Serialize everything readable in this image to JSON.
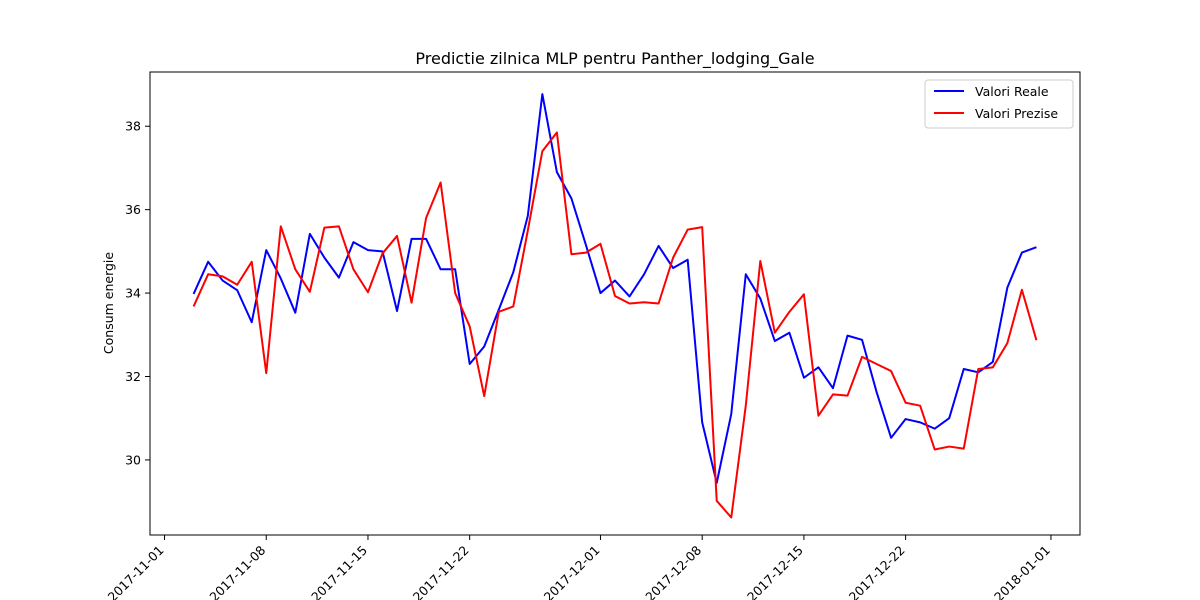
{
  "chart_data": {
    "type": "line",
    "title": "Predictie zilnica MLP pentru Panther_lodging_Gale",
    "xlabel": "",
    "ylabel": "Consum energie",
    "x_start": "2017-11-03",
    "x_ticks": [
      "2017-11-01",
      "2017-11-08",
      "2017-11-15",
      "2017-11-22",
      "2017-12-01",
      "2017-12-08",
      "2017-12-15",
      "2017-12-22",
      "2018-01-01"
    ],
    "xlim": [
      "2017-10-31",
      "2018-01-03"
    ],
    "ylim": [
      28.2,
      39.3
    ],
    "y_ticks": [
      30,
      32,
      34,
      36,
      38
    ],
    "grid": false,
    "legend_position": "top-right",
    "series": [
      {
        "name": "Valori Reale",
        "color": "#0000ff",
        "values": [
          33.98,
          34.75,
          34.3,
          34.07,
          33.3,
          35.03,
          34.35,
          33.53,
          35.42,
          34.85,
          34.37,
          35.22,
          35.03,
          35.0,
          33.57,
          35.3,
          35.3,
          34.57,
          34.57,
          32.3,
          32.72,
          33.6,
          34.5,
          35.85,
          38.77,
          36.9,
          36.27,
          35.15,
          34.0,
          34.3,
          33.92,
          34.45,
          35.13,
          34.6,
          34.8,
          30.9,
          29.45,
          31.1,
          34.45,
          33.87,
          32.85,
          33.05,
          31.97,
          32.22,
          31.72,
          32.98,
          32.88,
          31.63,
          30.53,
          30.98,
          30.9,
          30.75,
          31.0,
          32.18,
          32.1,
          32.35,
          34.13,
          34.97,
          35.1
        ]
      },
      {
        "name": "Valori Prezise",
        "color": "#ff0000",
        "values": [
          33.68,
          34.45,
          34.4,
          34.2,
          34.75,
          32.08,
          35.6,
          34.57,
          34.03,
          35.57,
          35.6,
          34.57,
          34.02,
          34.95,
          35.37,
          33.77,
          35.8,
          36.65,
          34.0,
          33.2,
          31.53,
          33.55,
          33.68,
          35.5,
          37.4,
          37.85,
          34.93,
          34.97,
          35.18,
          33.93,
          33.75,
          33.78,
          33.75,
          34.85,
          35.52,
          35.58,
          29.02,
          28.62,
          31.3,
          34.77,
          33.05,
          33.55,
          33.97,
          31.06,
          31.57,
          31.54,
          32.47,
          32.3,
          32.13,
          31.37,
          31.3,
          30.25,
          30.32,
          30.27,
          32.18,
          32.22,
          32.8,
          34.08,
          32.87
        ]
      }
    ]
  }
}
